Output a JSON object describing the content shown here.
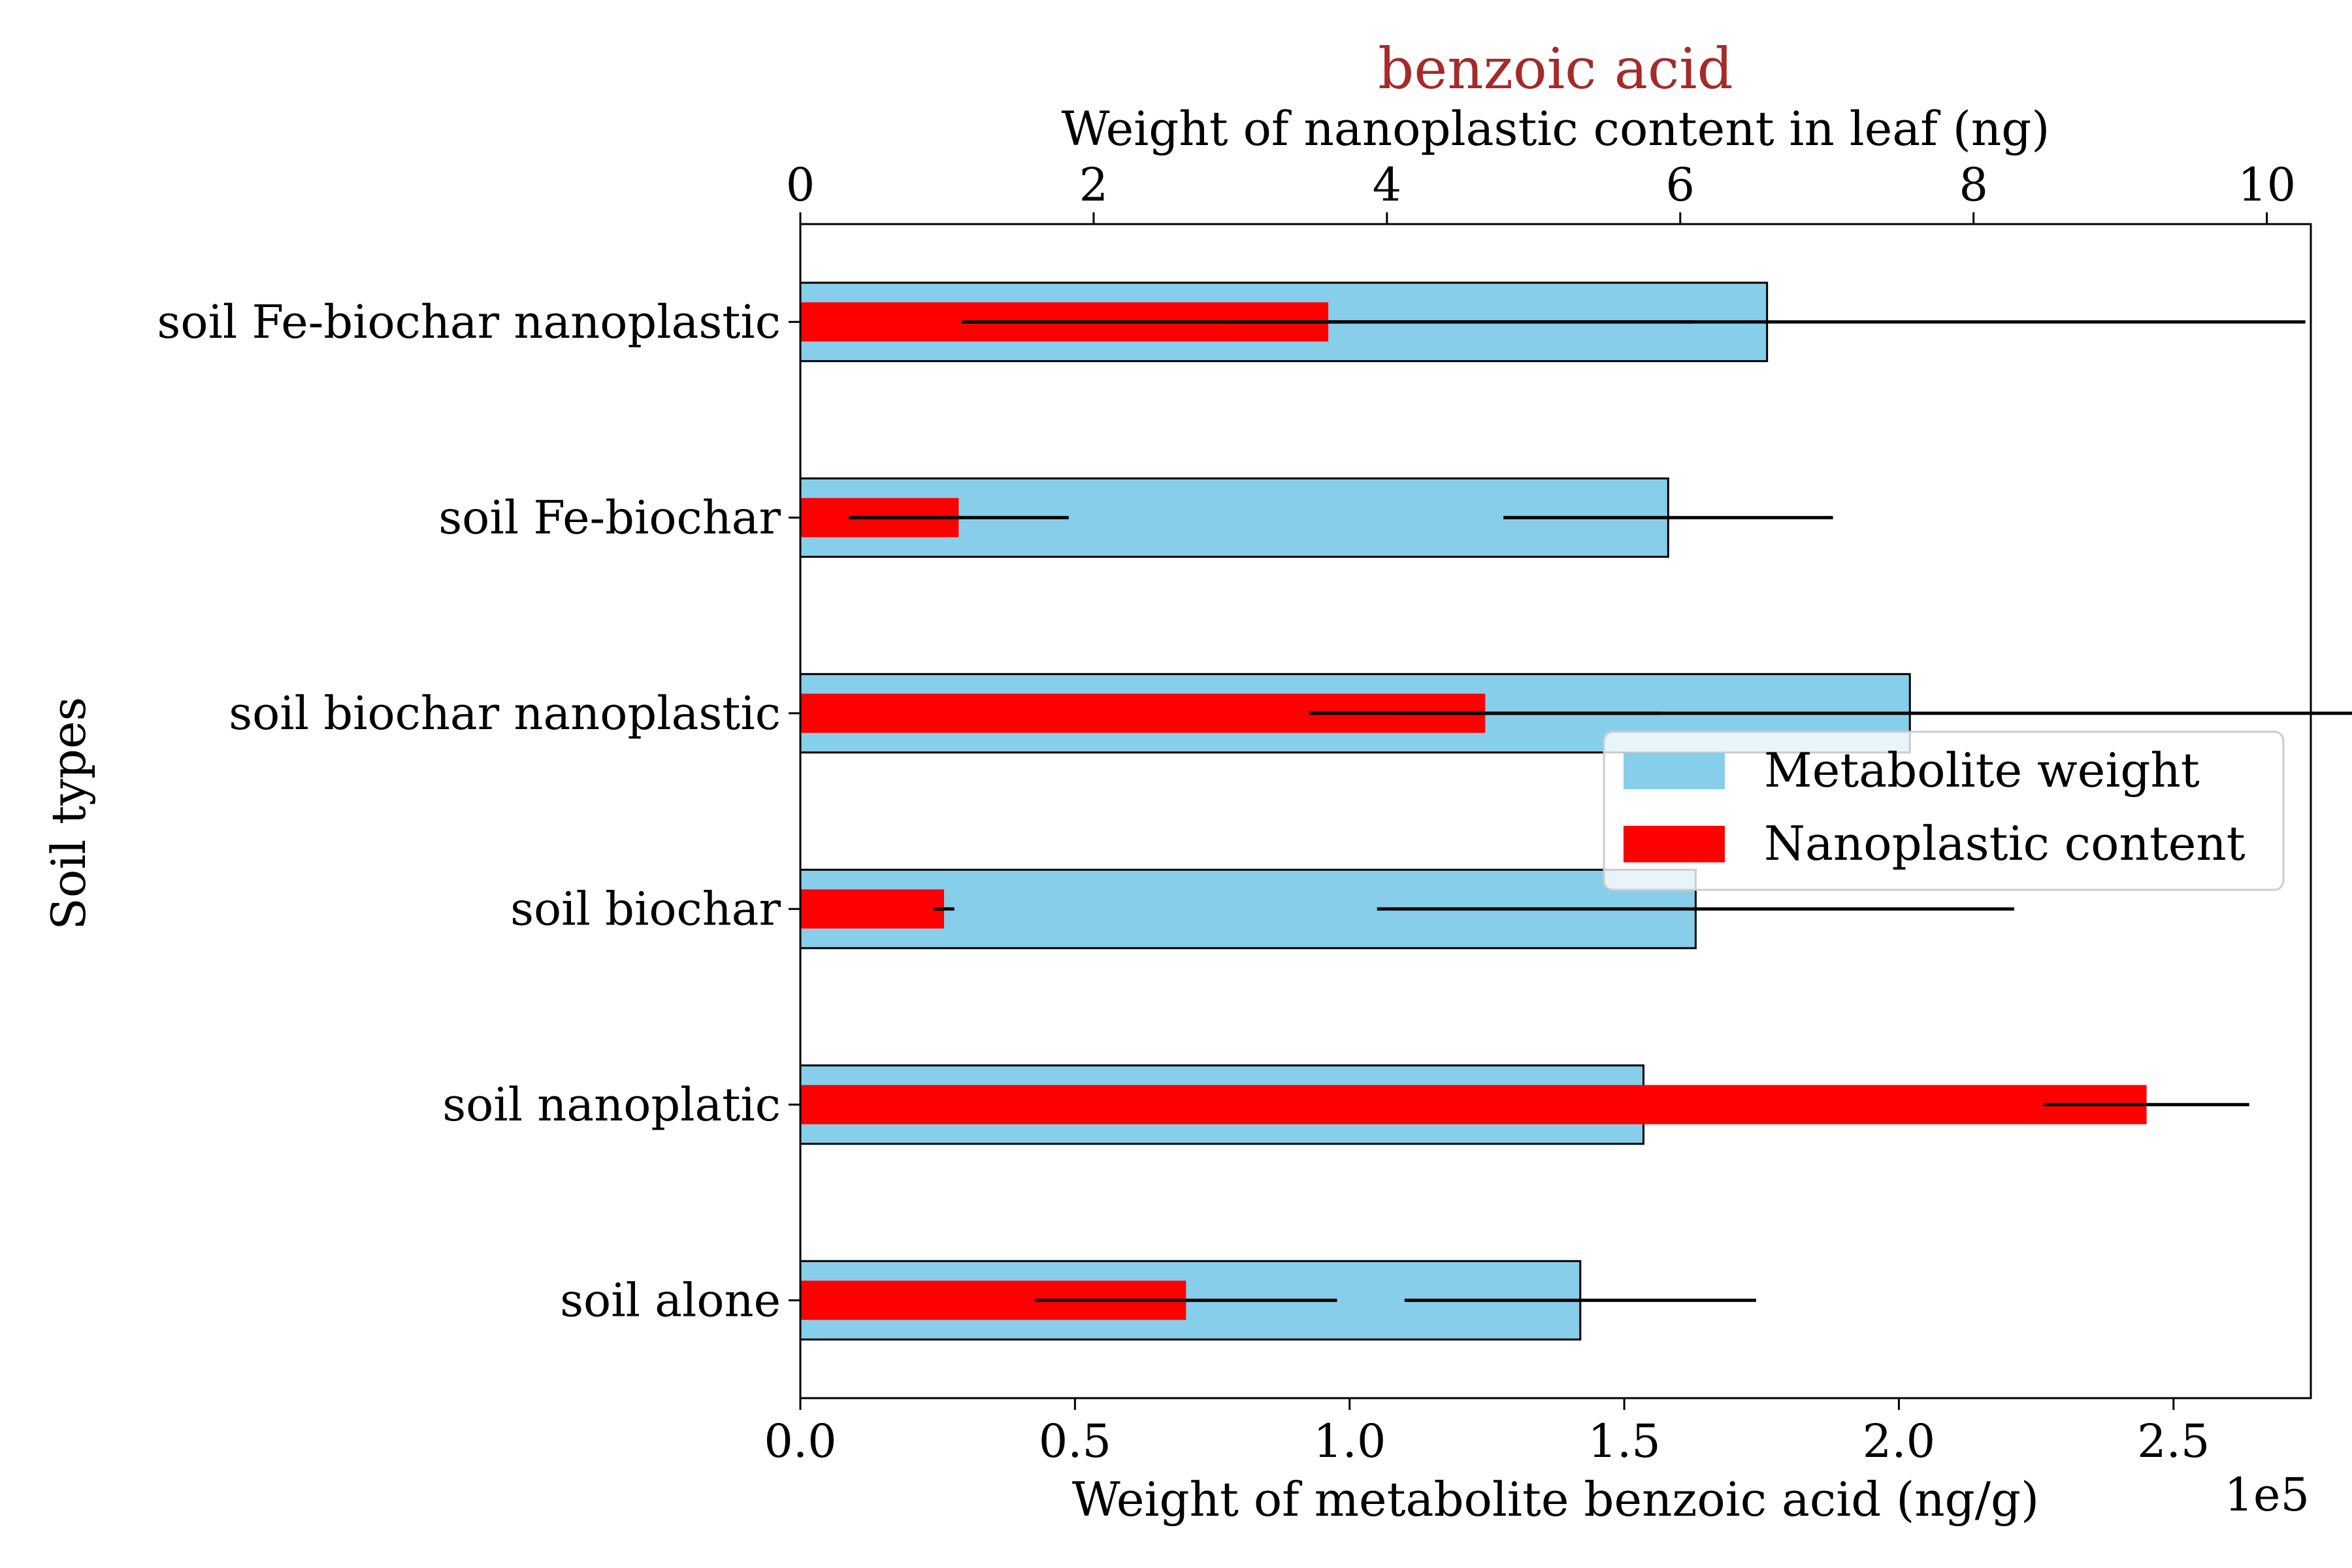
{
  "chart_data": {
    "type": "bar",
    "orientation": "horizontal",
    "title": "benzoic acid",
    "title_color": "#a52a2a",
    "ylabel": "Soil types",
    "categories": [
      "soil Fe-biochar nanoplastic",
      "soil Fe-biochar",
      "soil biochar nanoplastic",
      "soil biochar",
      "soil nanoplatic",
      "soil alone"
    ],
    "bottom_axis": {
      "label": "Weight of metabolite benzoic acid (ng/g)",
      "scale_note": "1e5",
      "xlim": [
        0,
        2.75
      ],
      "ticks": [
        0.0,
        0.5,
        1.0,
        1.5,
        2.0,
        2.5
      ],
      "tick_labels": [
        "0.0",
        "0.5",
        "1.0",
        "1.5",
        "2.0",
        "2.5"
      ]
    },
    "top_axis": {
      "label": "Weight of nanoplastic content in leaf (ng)",
      "xlim": [
        0,
        10.3
      ],
      "ticks": [
        0,
        2,
        4,
        6,
        8,
        10
      ],
      "tick_labels": [
        "0",
        "2",
        "4",
        "6",
        "8",
        "10"
      ]
    },
    "series": [
      {
        "name": "Metabolite weight",
        "axis": "bottom",
        "color": "#87ceeb",
        "values": [
          1.76,
          1.58,
          2.02,
          1.63,
          1.535,
          1.42
        ],
        "errors": [
          0.98,
          0.3,
          0.92,
          0.58,
          0.0,
          0.32
        ]
      },
      {
        "name": "Nanoplastic content",
        "axis": "top",
        "color": "#ff0000",
        "values": [
          3.6,
          1.08,
          4.67,
          0.98,
          9.18,
          2.63
        ],
        "errors": [
          2.5,
          0.75,
          1.2,
          0.07,
          0.7,
          1.03
        ]
      }
    ],
    "legend_position": "right"
  }
}
